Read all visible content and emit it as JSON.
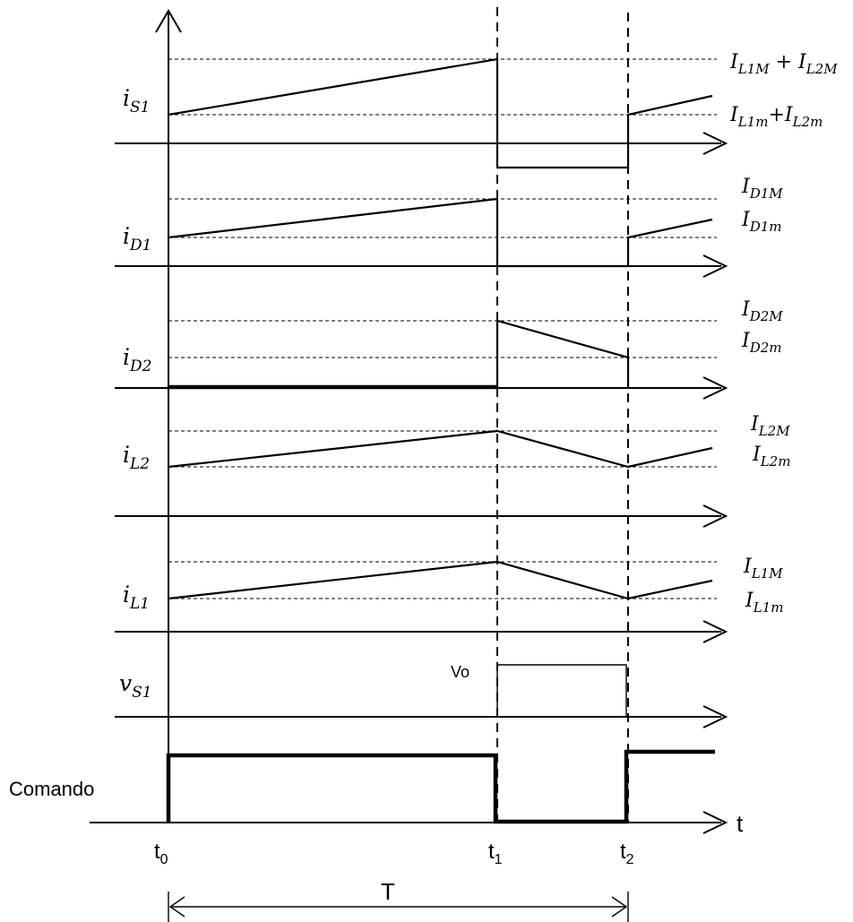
{
  "signal_labels": {
    "is1": {
      "base": "i",
      "sub": "S1"
    },
    "id1": {
      "base": "i",
      "sub": "D1"
    },
    "id2": {
      "base": "i",
      "sub": "D2"
    },
    "il2": {
      "base": "i",
      "sub": "L2"
    },
    "il1": {
      "base": "i",
      "sub": "L1"
    },
    "vs1": {
      "base": "v",
      "sub": "S1"
    },
    "comando": "Comando"
  },
  "level_labels": {
    "is1_max": {
      "a": "I",
      "a_sub": "L1M",
      "op": " + ",
      "b": "I",
      "b_sub": "L2M"
    },
    "is1_min": {
      "a": "I",
      "a_sub": "L1m",
      "op": "+",
      "b": "I",
      "b_sub": "L2m"
    },
    "id1_max": {
      "base": "I",
      "sub": "D1M"
    },
    "id1_min": {
      "base": "I",
      "sub": "D1m"
    },
    "id2_max": {
      "base": "I",
      "sub": "D2M"
    },
    "id2_min": {
      "base": "I",
      "sub": "D2m"
    },
    "il2_max": {
      "base": "I",
      "sub": "L2M"
    },
    "il2_min": {
      "base": "I",
      "sub": "L2m"
    },
    "il1_max": {
      "base": "I",
      "sub": "L1M"
    },
    "il1_min": {
      "base": "I",
      "sub": "L1m"
    },
    "vo": "Vo"
  },
  "time_labels": {
    "t0": {
      "base": "t",
      "sub": "0"
    },
    "t1": {
      "base": "t",
      "sub": "1"
    },
    "t2": {
      "base": "t",
      "sub": "2"
    },
    "t_axis": "t",
    "period": "T"
  }
}
